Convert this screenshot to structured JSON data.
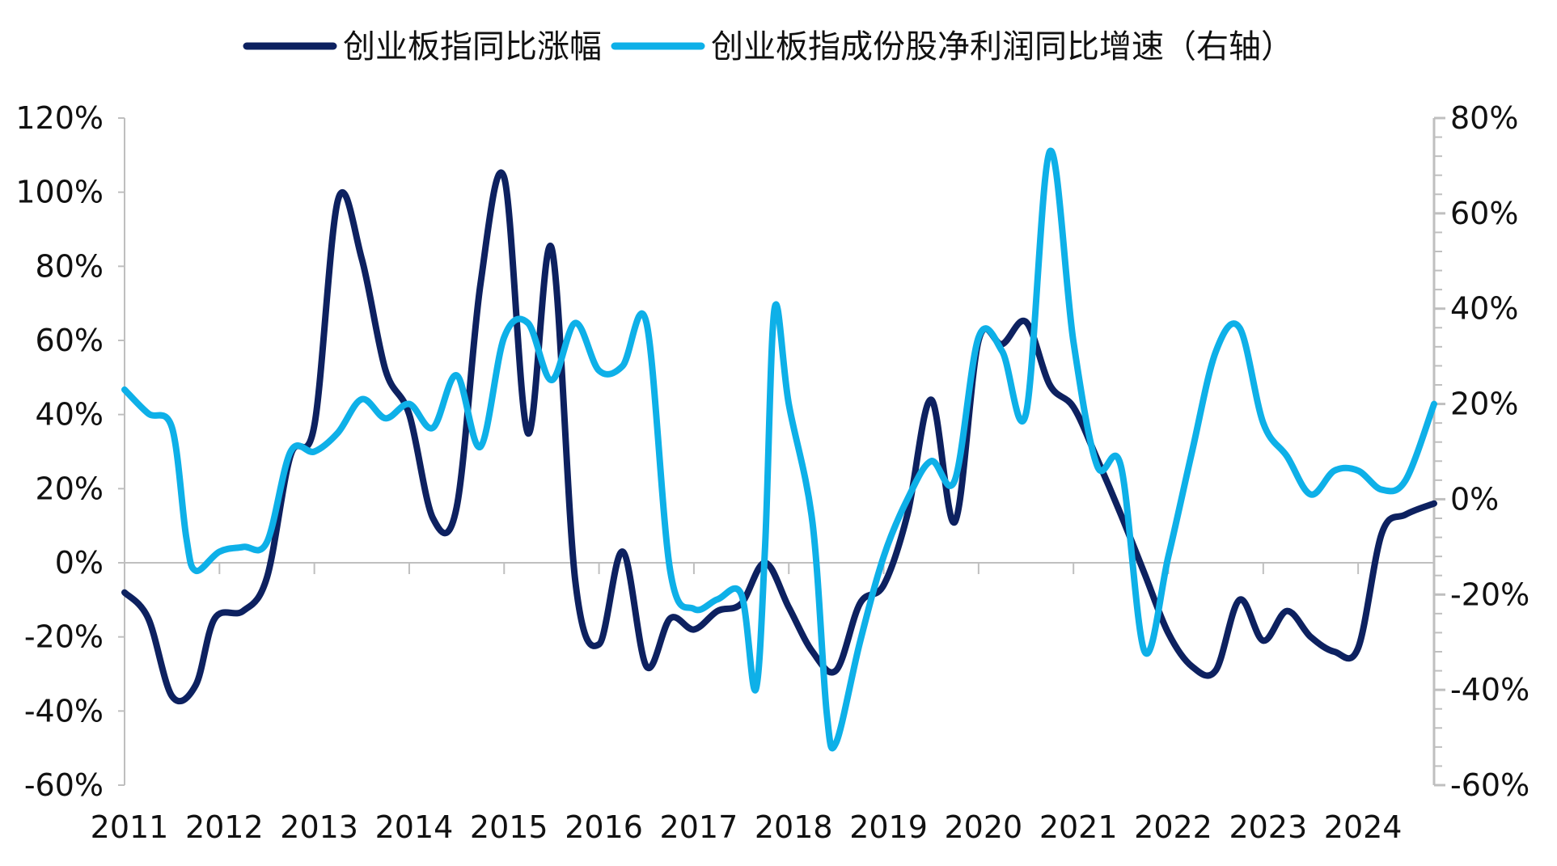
{
  "chart_data": {
    "type": "line",
    "title": "",
    "grid": false,
    "legend_position": "top",
    "x_range": [
      2011.0,
      2024.8
    ],
    "x_tick_labels": [
      "2011",
      "2012",
      "2013",
      "2014",
      "2015",
      "2016",
      "2017",
      "2018",
      "2019",
      "2020",
      "2021",
      "2022",
      "2023",
      "2024"
    ],
    "y_left": {
      "range": [
        -60,
        120
      ],
      "tick_labels": [
        "120%",
        "100%",
        "80%",
        "60%",
        "40%",
        "20%",
        "0%",
        "-20%",
        "-40%",
        "-60%"
      ]
    },
    "y_right": {
      "range": [
        -60,
        80
      ],
      "tick_labels": [
        "80%",
        "60%",
        "40%",
        "20%",
        "0%",
        "-20%",
        "-40%",
        "-60%"
      ]
    },
    "colors": {
      "series1": "#0d2160",
      "series2": "#0eb0e8",
      "axis": "#bfbfbf"
    },
    "series": [
      {
        "name": "创业板指同比涨幅",
        "axis": "left",
        "points": [
          [
            2011.0,
            -8
          ],
          [
            2011.25,
            -15
          ],
          [
            2011.5,
            -36
          ],
          [
            2011.75,
            -33
          ],
          [
            2011.95,
            -15
          ],
          [
            2012.25,
            -13
          ],
          [
            2012.5,
            -4
          ],
          [
            2012.75,
            29
          ],
          [
            2013.0,
            37
          ],
          [
            2013.25,
            98
          ],
          [
            2013.5,
            82
          ],
          [
            2013.75,
            52
          ],
          [
            2014.0,
            40
          ],
          [
            2014.25,
            12
          ],
          [
            2014.5,
            15
          ],
          [
            2014.75,
            75
          ],
          [
            2015.0,
            104
          ],
          [
            2015.25,
            35
          ],
          [
            2015.5,
            85
          ],
          [
            2015.75,
            -5
          ],
          [
            2016.0,
            -22
          ],
          [
            2016.25,
            3
          ],
          [
            2016.5,
            -28
          ],
          [
            2016.75,
            -15
          ],
          [
            2017.0,
            -18
          ],
          [
            2017.25,
            -13
          ],
          [
            2017.5,
            -11
          ],
          [
            2017.75,
            0
          ],
          [
            2018.0,
            -12
          ],
          [
            2018.25,
            -24
          ],
          [
            2018.5,
            -29
          ],
          [
            2018.75,
            -11
          ],
          [
            2019.0,
            -6
          ],
          [
            2019.25,
            13
          ],
          [
            2019.5,
            44
          ],
          [
            2019.75,
            11
          ],
          [
            2020.0,
            60
          ],
          [
            2020.25,
            59
          ],
          [
            2020.5,
            65
          ],
          [
            2020.75,
            48
          ],
          [
            2021.0,
            42
          ],
          [
            2021.25,
            28
          ],
          [
            2021.5,
            13
          ],
          [
            2021.75,
            -3
          ],
          [
            2022.0,
            -19
          ],
          [
            2022.25,
            -28
          ],
          [
            2022.5,
            -29
          ],
          [
            2022.75,
            -10
          ],
          [
            2023.0,
            -21
          ],
          [
            2023.25,
            -13
          ],
          [
            2023.5,
            -20
          ],
          [
            2023.75,
            -24
          ],
          [
            2024.0,
            -23
          ],
          [
            2024.25,
            8
          ],
          [
            2024.5,
            13
          ],
          [
            2024.8,
            16
          ]
        ]
      },
      {
        "name": "创业板指成份股净利润同比增速（右轴）",
        "axis": "right",
        "points": [
          [
            2011.0,
            23
          ],
          [
            2011.25,
            18
          ],
          [
            2011.5,
            15
          ],
          [
            2011.65,
            -8
          ],
          [
            2011.75,
            -15
          ],
          [
            2012.0,
            -11
          ],
          [
            2012.25,
            -10
          ],
          [
            2012.5,
            -9
          ],
          [
            2012.75,
            10
          ],
          [
            2013.0,
            10
          ],
          [
            2013.25,
            14
          ],
          [
            2013.5,
            21
          ],
          [
            2013.75,
            17
          ],
          [
            2014.0,
            20
          ],
          [
            2014.25,
            15
          ],
          [
            2014.5,
            26
          ],
          [
            2014.75,
            11
          ],
          [
            2015.0,
            34
          ],
          [
            2015.25,
            37
          ],
          [
            2015.5,
            25
          ],
          [
            2015.75,
            37
          ],
          [
            2016.0,
            27
          ],
          [
            2016.25,
            28
          ],
          [
            2016.5,
            37
          ],
          [
            2016.75,
            -15
          ],
          [
            2017.0,
            -23
          ],
          [
            2017.25,
            -21
          ],
          [
            2017.5,
            -20
          ],
          [
            2017.65,
            -40
          ],
          [
            2017.75,
            -10
          ],
          [
            2017.85,
            40
          ],
          [
            2018.0,
            20
          ],
          [
            2018.25,
            -5
          ],
          [
            2018.4,
            -45
          ],
          [
            2018.5,
            -51
          ],
          [
            2018.75,
            -30
          ],
          [
            2019.0,
            -12
          ],
          [
            2019.25,
            0
          ],
          [
            2019.5,
            8
          ],
          [
            2019.75,
            4
          ],
          [
            2020.0,
            34
          ],
          [
            2020.25,
            31
          ],
          [
            2020.5,
            18
          ],
          [
            2020.75,
            73
          ],
          [
            2021.0,
            33
          ],
          [
            2021.25,
            7
          ],
          [
            2021.5,
            7
          ],
          [
            2021.75,
            -32
          ],
          [
            2022.0,
            -12
          ],
          [
            2022.25,
            10
          ],
          [
            2022.5,
            31
          ],
          [
            2022.75,
            36
          ],
          [
            2023.0,
            16
          ],
          [
            2023.25,
            9
          ],
          [
            2023.5,
            1
          ],
          [
            2023.75,
            6
          ],
          [
            2024.0,
            6
          ],
          [
            2024.25,
            2
          ],
          [
            2024.5,
            4
          ],
          [
            2024.8,
            20
          ]
        ]
      }
    ]
  }
}
